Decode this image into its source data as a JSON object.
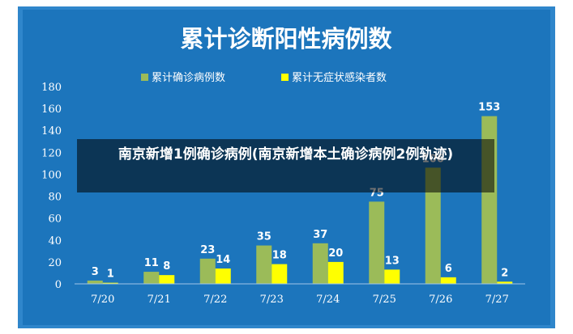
{
  "overlay": {
    "caption": "南京新增1例确诊病例(南京新增本土确诊病例2例轨迹)"
  },
  "chart_data": {
    "type": "bar",
    "title": "累计诊断阳性病例数",
    "categories": [
      "7/20",
      "7/21",
      "7/22",
      "7/23",
      "7/24",
      "7/25",
      "7/26",
      "7/27"
    ],
    "series": [
      {
        "name": "累计确诊病例数",
        "values": [
          3,
          11,
          23,
          35,
          37,
          75,
          106,
          153
        ],
        "color": "#9BBB59"
      },
      {
        "name": "累计无症状感染者数",
        "values": [
          1,
          8,
          14,
          18,
          20,
          13,
          6,
          2
        ],
        "color": "#FFFF00"
      }
    ],
    "ylim": [
      0,
      180
    ],
    "yticks": [
      "0",
      "20",
      "40",
      "60",
      "80",
      "100",
      "120",
      "140",
      "160",
      "180"
    ],
    "ytick_values": [
      0,
      20,
      40,
      60,
      80,
      100,
      120,
      140,
      160,
      180
    ],
    "grid": false,
    "legend": "top",
    "background": "#1C75BC",
    "frame": "#2F86CB"
  }
}
